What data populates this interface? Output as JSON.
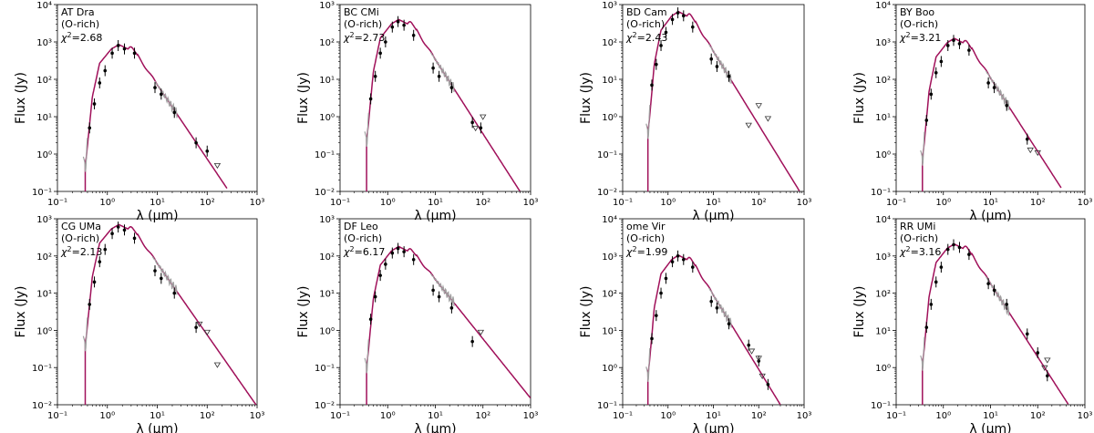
{
  "figure": {
    "x_axis_label": "λ (μm)",
    "y_axis_label": "Flux (Jy)",
    "model_color": "#a0105a",
    "spectrum_color": "#a0a0a0",
    "point_color": "#000000"
  },
  "chart_data": [
    {
      "type": "line",
      "star": "AT Dra",
      "chemistry": "(O-rich)",
      "chi2": "2.68",
      "xscale": "log",
      "yscale": "log",
      "xlim": [
        0.1,
        1000
      ],
      "ylim": [
        0.1,
        10000
      ],
      "xticks": [
        "10⁻¹",
        "10⁰",
        "10¹",
        "10²",
        "10³"
      ],
      "yticks": [
        "10⁻¹",
        "10⁰",
        "10¹",
        "10²",
        "10³",
        "10⁴"
      ],
      "model_peak": 850,
      "model_end": [
        250,
        0.12
      ],
      "spectrum_x": [
        [
          0.33,
          0.4
        ],
        [
          9,
          25
        ]
      ],
      "points": [
        [
          0.44,
          5
        ],
        [
          0.55,
          22
        ],
        [
          0.7,
          80
        ],
        [
          0.9,
          170
        ],
        [
          1.25,
          500
        ],
        [
          1.65,
          800
        ],
        [
          2.2,
          650
        ],
        [
          3.5,
          500
        ],
        [
          9,
          60
        ],
        [
          12,
          40
        ],
        [
          22,
          13
        ],
        [
          60,
          2
        ],
        [
          100,
          1.2
        ]
      ],
      "upper_limits": [
        [
          160,
          0.5
        ]
      ]
    },
    {
      "type": "line",
      "star": "BC CMi",
      "chemistry": "(O-rich)",
      "chi2": "2.73",
      "xscale": "log",
      "yscale": "log",
      "xlim": [
        0.1,
        1000
      ],
      "ylim": [
        0.01,
        1000
      ],
      "xticks": [
        "10⁻¹",
        "10⁰",
        "10¹",
        "10²",
        "10³"
      ],
      "yticks": [
        "10⁻²",
        "10⁻¹",
        "10⁰",
        "10¹",
        "10²",
        "10³"
      ],
      "model_peak": 400,
      "model_end": [
        600,
        0.01
      ],
      "spectrum_x": [
        [
          0.33,
          0.4
        ],
        [
          8,
          25
        ]
      ],
      "points": [
        [
          0.44,
          3
        ],
        [
          0.55,
          12
        ],
        [
          0.7,
          50
        ],
        [
          0.9,
          100
        ],
        [
          1.25,
          250
        ],
        [
          1.65,
          350
        ],
        [
          2.2,
          280
        ],
        [
          3.5,
          150
        ],
        [
          9,
          20
        ],
        [
          12,
          12
        ],
        [
          22,
          6
        ],
        [
          60,
          0.7
        ],
        [
          90,
          0.5
        ]
      ],
      "upper_limits": [
        [
          70,
          0.5
        ],
        [
          100,
          1.0
        ]
      ]
    },
    {
      "type": "line",
      "star": "BD Cam",
      "chemistry": "(O-rich)",
      "chi2": "2.43",
      "xscale": "log",
      "yscale": "log",
      "xlim": [
        0.1,
        1000
      ],
      "ylim": [
        0.01,
        1000
      ],
      "xticks": [
        "10⁻¹",
        "10⁰",
        "10¹",
        "10²",
        "10³"
      ],
      "yticks": [
        "10⁻²",
        "10⁻¹",
        "10⁰",
        "10¹",
        "10²",
        "10³"
      ],
      "model_peak": 650,
      "model_end": [
        800,
        0.01
      ],
      "spectrum_x": [
        [
          0.33,
          0.4
        ],
        [
          8,
          25
        ]
      ],
      "points": [
        [
          0.44,
          7
        ],
        [
          0.55,
          25
        ],
        [
          0.7,
          80
        ],
        [
          0.9,
          180
        ],
        [
          1.25,
          400
        ],
        [
          1.65,
          600
        ],
        [
          2.2,
          500
        ],
        [
          3.5,
          250
        ],
        [
          9,
          35
        ],
        [
          12,
          22
        ],
        [
          22,
          12
        ]
      ],
      "upper_limits": [
        [
          60,
          0.6
        ],
        [
          100,
          2.0
        ],
        [
          160,
          0.9
        ]
      ]
    },
    {
      "type": "line",
      "star": "BY Boo",
      "chemistry": "(O-rich)",
      "chi2": "3.21",
      "xscale": "log",
      "yscale": "log",
      "xlim": [
        0.1,
        1000
      ],
      "ylim": [
        0.1,
        10000
      ],
      "xticks": [
        "10⁻¹",
        "10⁰",
        "10¹",
        "10²",
        "10³"
      ],
      "yticks": [
        "10⁻¹",
        "10⁰",
        "10¹",
        "10²",
        "10³",
        "10⁴"
      ],
      "model_peak": 1250,
      "model_end": [
        320,
        0.12
      ],
      "spectrum_x": [
        [
          0.33,
          0.4
        ],
        [
          8,
          25
        ]
      ],
      "points": [
        [
          0.44,
          8
        ],
        [
          0.55,
          40
        ],
        [
          0.7,
          150
        ],
        [
          0.9,
          300
        ],
        [
          1.25,
          800
        ],
        [
          1.65,
          1100
        ],
        [
          2.2,
          900
        ],
        [
          3.5,
          600
        ],
        [
          9,
          80
        ],
        [
          12,
          60
        ],
        [
          22,
          20
        ],
        [
          60,
          2.5
        ]
      ],
      "upper_limits": [
        [
          70,
          1.3
        ],
        [
          100,
          1.1
        ]
      ]
    },
    {
      "type": "line",
      "star": "CG UMa",
      "chemistry": "(O-rich)",
      "chi2": "2.13",
      "xscale": "log",
      "yscale": "log",
      "xlim": [
        0.1,
        1000
      ],
      "ylim": [
        0.01,
        1000
      ],
      "xticks": [
        "10⁻¹",
        "10⁰",
        "10¹",
        "10²",
        "10³"
      ],
      "yticks": [
        "10⁻²",
        "10⁻¹",
        "10⁰",
        "10¹",
        "10²",
        "10³"
      ],
      "model_peak": 700,
      "model_end": [
        950,
        0.01
      ],
      "spectrum_x": [
        [
          0.33,
          0.4
        ],
        [
          8,
          25
        ]
      ],
      "points": [
        [
          0.44,
          5
        ],
        [
          0.55,
          20
        ],
        [
          0.7,
          70
        ],
        [
          0.9,
          150
        ],
        [
          1.25,
          400
        ],
        [
          1.65,
          600
        ],
        [
          2.2,
          500
        ],
        [
          3.5,
          300
        ],
        [
          9,
          40
        ],
        [
          12,
          25
        ],
        [
          22,
          10
        ],
        [
          60,
          1.2
        ]
      ],
      "upper_limits": [
        [
          70,
          1.5
        ],
        [
          100,
          0.9
        ],
        [
          160,
          0.12
        ]
      ]
    },
    {
      "type": "line",
      "star": "DF Leo",
      "chemistry": "(O-rich)",
      "chi2": "6.17",
      "xscale": "log",
      "yscale": "log",
      "xlim": [
        0.1,
        1000
      ],
      "ylim": [
        0.01,
        1000
      ],
      "xticks": [
        "10⁻¹",
        "10⁰",
        "10¹",
        "10²",
        "10³"
      ],
      "yticks": [
        "10⁻²",
        "10⁻¹",
        "10⁰",
        "10¹",
        "10²",
        "10³"
      ],
      "model_peak": 180,
      "model_end": [
        1000,
        0.015
      ],
      "spectrum_x": [
        [
          0.33,
          0.4
        ],
        [
          8,
          25
        ]
      ],
      "points": [
        [
          0.44,
          2
        ],
        [
          0.55,
          8
        ],
        [
          0.7,
          30
        ],
        [
          0.9,
          60
        ],
        [
          1.25,
          120
        ],
        [
          1.65,
          160
        ],
        [
          2.2,
          130
        ],
        [
          3.5,
          80
        ],
        [
          9,
          12
        ],
        [
          12,
          8
        ],
        [
          22,
          4
        ],
        [
          60,
          0.5
        ]
      ],
      "upper_limits": [
        [
          90,
          0.9
        ]
      ]
    },
    {
      "type": "line",
      "star": "ome Vir",
      "chemistry": "(O-rich)",
      "chi2": "1.99",
      "xscale": "log",
      "yscale": "log",
      "xlim": [
        0.1,
        1000
      ],
      "ylim": [
        0.1,
        10000
      ],
      "xticks": [
        "10⁻¹",
        "10⁰",
        "10¹",
        "10²",
        "10³"
      ],
      "yticks": [
        "10⁻¹",
        "10⁰",
        "10¹",
        "10²",
        "10³",
        "10⁴"
      ],
      "model_peak": 1050,
      "model_end": [
        300,
        0.1
      ],
      "spectrum_x": [
        [
          0.33,
          0.4
        ],
        [
          8,
          25
        ]
      ],
      "points": [
        [
          0.44,
          6
        ],
        [
          0.55,
          25
        ],
        [
          0.7,
          100
        ],
        [
          0.9,
          250
        ],
        [
          1.25,
          700
        ],
        [
          1.65,
          1000
        ],
        [
          2.2,
          800
        ],
        [
          3.5,
          500
        ],
        [
          9,
          60
        ],
        [
          12,
          40
        ],
        [
          22,
          15
        ],
        [
          60,
          4
        ],
        [
          100,
          1.5
        ],
        [
          160,
          0.35
        ]
      ],
      "upper_limits": [
        [
          70,
          2.8
        ],
        [
          100,
          1.8
        ],
        [
          120,
          0.6
        ]
      ]
    },
    {
      "type": "line",
      "star": "RR UMi",
      "chemistry": "(O-rich)",
      "chi2": "3.16",
      "xscale": "log",
      "yscale": "log",
      "xlim": [
        0.1,
        1000
      ],
      "ylim": [
        0.1,
        10000
      ],
      "xticks": [
        "10⁻¹",
        "10⁰",
        "10¹",
        "10²",
        "10³"
      ],
      "yticks": [
        "10⁻¹",
        "10⁰",
        "10¹",
        "10²",
        "10³",
        "10⁴"
      ],
      "model_peak": 2100,
      "model_end": [
        450,
        0.1
      ],
      "spectrum_x": [
        [
          0.33,
          0.4
        ],
        [
          8,
          25
        ]
      ],
      "points": [
        [
          0.44,
          12
        ],
        [
          0.55,
          50
        ],
        [
          0.7,
          200
        ],
        [
          0.9,
          500
        ],
        [
          1.25,
          1500
        ],
        [
          1.65,
          2000
        ],
        [
          2.2,
          1700
        ],
        [
          3.5,
          1100
        ],
        [
          9,
          180
        ],
        [
          12,
          120
        ],
        [
          22,
          50
        ],
        [
          60,
          8
        ],
        [
          100,
          2.5
        ],
        [
          160,
          0.6
        ]
      ],
      "upper_limits": [
        [
          160,
          1.6
        ],
        [
          140,
          1.0
        ]
      ]
    }
  ]
}
